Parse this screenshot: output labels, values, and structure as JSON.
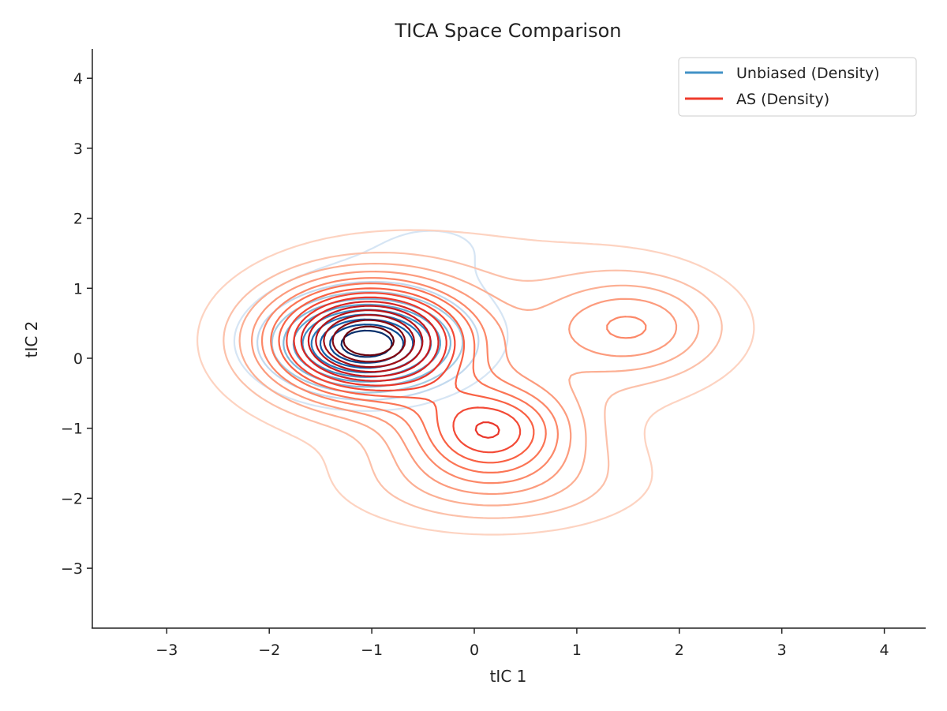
{
  "chart_data": {
    "type": "contour",
    "title": "TICA Space Comparison",
    "xlabel": "tIC 1",
    "ylabel": "tIC 2",
    "xlim": [
      -3.7,
      4.4
    ],
    "ylim": [
      -3.85,
      4.4
    ],
    "xticks": [
      -3,
      -2,
      -1,
      0,
      1,
      2,
      3,
      4
    ],
    "yticks": [
      -3,
      -2,
      -1,
      0,
      1,
      2,
      3,
      4
    ],
    "xtick_labels": [
      "−3",
      "−2",
      "−1",
      "0",
      "1",
      "2",
      "3",
      "4"
    ],
    "ytick_labels": [
      "−3",
      "−2",
      "−1",
      "0",
      "1",
      "2",
      "3",
      "4"
    ],
    "grid": false,
    "legend_position": "top-right",
    "series": [
      {
        "name": "Unbiased (Density)",
        "legend_color": "#4292c6",
        "colormap": "Blues",
        "levels": 10,
        "components": [
          {
            "mx": -1.05,
            "my": 0.2,
            "sx": 0.55,
            "sy": 0.42,
            "w": 1.0
          },
          {
            "mx": -0.3,
            "my": 1.7,
            "sx": 0.9,
            "sy": 0.6,
            "w": 0.08
          },
          {
            "mx": 0.8,
            "my": 0.4,
            "sx": 0.9,
            "sy": 0.7,
            "w": 0.04
          },
          {
            "mx": -1.3,
            "my": 0.6,
            "sx": 1.0,
            "sy": 0.9,
            "w": 0.06
          }
        ]
      },
      {
        "name": "AS (Density)",
        "legend_color": "#ef3b2c",
        "colormap": "Reds",
        "levels": 15,
        "components": [
          {
            "mx": -1.05,
            "my": 0.25,
            "sx": 0.65,
            "sy": 0.55,
            "w": 1.0
          },
          {
            "mx": 0.15,
            "my": -1.0,
            "sx": 0.55,
            "sy": 0.45,
            "w": 0.5
          },
          {
            "mx": 1.55,
            "my": 0.45,
            "sx": 0.6,
            "sy": 0.5,
            "w": 0.28
          },
          {
            "mx": 0.2,
            "my": -1.8,
            "sx": 0.9,
            "sy": 0.45,
            "w": 0.2
          },
          {
            "mx": 0.0,
            "my": 0.3,
            "sx": 1.6,
            "sy": 1.3,
            "w": 0.12
          }
        ]
      }
    ]
  }
}
